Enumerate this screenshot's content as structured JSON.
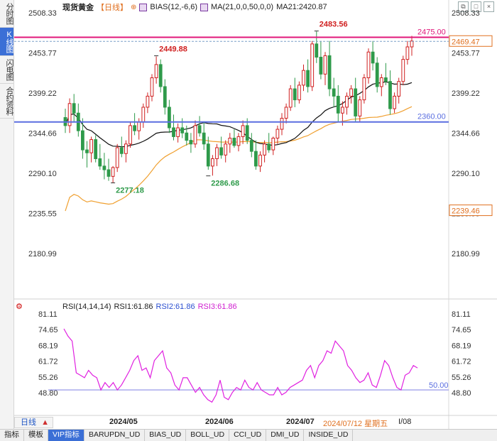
{
  "sidebar": {
    "tabs": [
      {
        "label": "分时图",
        "active": false
      },
      {
        "label": "K线图",
        "active": true
      },
      {
        "label": "闪电图",
        "active": false
      },
      {
        "label": "合约资料",
        "active": false
      }
    ]
  },
  "header": {
    "title": "现货黄金",
    "period": "【日线】",
    "bias": "BIAS(12,-6,6)",
    "ma": "MA(21,0,0,50,0,0)",
    "ma21": "MA21:2420.87"
  },
  "window_icons": [
    "restore-icon",
    "maximize-icon",
    "close-icon"
  ],
  "price_axis": {
    "ticks": [
      2508.33,
      2453.77,
      2399.22,
      2344.66,
      2290.1,
      2235.55,
      2180.99
    ],
    "ymin": 2130,
    "ymax": 2508.33,
    "right_labels": [
      {
        "value": "2469.47",
        "color": "#e07020"
      },
      {
        "value": "2239.46",
        "color": "#e07020"
      }
    ]
  },
  "price_lines": [
    {
      "value": 2475.0,
      "label": "2475.00",
      "color": "#e0177a"
    },
    {
      "value": 2360.0,
      "label": "2360.00",
      "color": "#5a6ee0"
    }
  ],
  "annotations": [
    {
      "value": "2449.88",
      "color": "#d02020"
    },
    {
      "value": "2483.56",
      "color": "#d02020"
    },
    {
      "value": "2277.18",
      "color": "#2e9a4a"
    },
    {
      "value": "2286.68",
      "color": "#2e9a4a"
    }
  ],
  "rsi": {
    "header": "RSI(14,14,14)",
    "rsi1": "RSI1:61.86",
    "rsi2": "RSI2:61.86",
    "rsi3": "RSI3:61.86",
    "ticks": [
      81.11,
      74.65,
      68.19,
      61.72,
      55.26,
      48.8
    ],
    "ymin": 44.5,
    "ymax": 81.11,
    "level": {
      "value": 50,
      "label": "50.00"
    },
    "values": [
      75,
      72,
      70,
      57,
      56,
      55,
      58,
      56,
      55,
      50,
      53,
      51,
      53,
      50,
      52,
      55,
      58,
      62,
      64,
      58,
      59,
      55,
      62,
      64,
      66,
      59,
      57,
      52,
      50,
      55,
      55,
      52,
      49,
      51,
      48,
      46,
      45,
      48,
      54,
      47,
      46,
      49,
      51,
      50,
      54,
      51,
      50,
      53,
      50,
      49,
      48,
      48,
      51,
      48,
      49,
      51,
      52,
      53,
      54,
      58,
      60,
      55,
      60,
      62,
      66,
      65,
      70,
      68,
      66,
      60,
      58,
      55,
      53,
      54,
      57,
      52,
      51,
      56,
      62,
      60,
      55,
      51,
      50,
      56,
      57,
      60,
      59
    ]
  },
  "x_axis": {
    "labels": [
      "2024/05",
      "2024/06",
      "2024/07"
    ],
    "selected": "2024/07/12 星期五",
    "suffix": "I/08"
  },
  "period_selector": {
    "label": "日线",
    "arrow": "▲"
  },
  "bottom_tabs": [
    "指标",
    "模板",
    "VIP指标",
    "BARUPDN_UD",
    "BIAS_UD",
    "BOLL_UD",
    "CCI_UD",
    "DMI_UD",
    "INSIDE_UD"
  ],
  "candles": [
    [
      2366,
      2378,
      2345,
      2355
    ],
    [
      2355,
      2392,
      2345,
      2385
    ],
    [
      2385,
      2398,
      2360,
      2372
    ],
    [
      2372,
      2385,
      2340,
      2348
    ],
    [
      2348,
      2365,
      2310,
      2322
    ],
    [
      2322,
      2334,
      2298,
      2318
    ],
    [
      2318,
      2340,
      2305,
      2336
    ],
    [
      2336,
      2342,
      2305,
      2310
    ],
    [
      2310,
      2330,
      2295,
      2300
    ],
    [
      2300,
      2318,
      2282,
      2295
    ],
    [
      2295,
      2310,
      2280,
      2286
    ],
    [
      2286,
      2300,
      2277,
      2298
    ],
    [
      2298,
      2330,
      2292,
      2325
    ],
    [
      2325,
      2340,
      2312,
      2317
    ],
    [
      2317,
      2335,
      2305,
      2330
    ],
    [
      2330,
      2360,
      2325,
      2355
    ],
    [
      2355,
      2372,
      2342,
      2348
    ],
    [
      2348,
      2365,
      2336,
      2360
    ],
    [
      2360,
      2385,
      2352,
      2380
    ],
    [
      2380,
      2400,
      2372,
      2395
    ],
    [
      2395,
      2425,
      2388,
      2420
    ],
    [
      2420,
      2449,
      2412,
      2438
    ],
    [
      2438,
      2445,
      2400,
      2408
    ],
    [
      2408,
      2418,
      2370,
      2380
    ],
    [
      2380,
      2390,
      2345,
      2352
    ],
    [
      2352,
      2370,
      2335,
      2340
    ],
    [
      2340,
      2358,
      2332,
      2352
    ],
    [
      2352,
      2365,
      2338,
      2345
    ],
    [
      2345,
      2355,
      2328,
      2335
    ],
    [
      2335,
      2345,
      2318,
      2330
    ],
    [
      2330,
      2362,
      2325,
      2355
    ],
    [
      2355,
      2368,
      2340,
      2345
    ],
    [
      2345,
      2360,
      2322,
      2330
    ],
    [
      2330,
      2340,
      2295,
      2300
    ],
    [
      2300,
      2315,
      2287,
      2310
    ],
    [
      2310,
      2330,
      2300,
      2325
    ],
    [
      2325,
      2340,
      2310,
      2315
    ],
    [
      2315,
      2335,
      2305,
      2330
    ],
    [
      2330,
      2345,
      2318,
      2338
    ],
    [
      2338,
      2350,
      2325,
      2328
    ],
    [
      2328,
      2345,
      2320,
      2340
    ],
    [
      2340,
      2362,
      2330,
      2355
    ],
    [
      2355,
      2365,
      2330,
      2335
    ],
    [
      2335,
      2345,
      2312,
      2320
    ],
    [
      2320,
      2335,
      2295,
      2300
    ],
    [
      2300,
      2320,
      2292,
      2315
    ],
    [
      2315,
      2335,
      2305,
      2330
    ],
    [
      2330,
      2345,
      2318,
      2322
    ],
    [
      2322,
      2340,
      2315,
      2338
    ],
    [
      2338,
      2355,
      2330,
      2350
    ],
    [
      2350,
      2372,
      2342,
      2365
    ],
    [
      2365,
      2385,
      2358,
      2380
    ],
    [
      2380,
      2410,
      2375,
      2405
    ],
    [
      2405,
      2420,
      2380,
      2390
    ],
    [
      2390,
      2415,
      2385,
      2410
    ],
    [
      2410,
      2438,
      2402,
      2430
    ],
    [
      2430,
      2445,
      2400,
      2408
    ],
    [
      2408,
      2470,
      2402,
      2466
    ],
    [
      2466,
      2483,
      2440,
      2448
    ],
    [
      2448,
      2470,
      2418,
      2425
    ],
    [
      2425,
      2455,
      2410,
      2450
    ],
    [
      2450,
      2470,
      2395,
      2405
    ],
    [
      2405,
      2420,
      2380,
      2395
    ],
    [
      2395,
      2410,
      2360,
      2372
    ],
    [
      2372,
      2388,
      2355,
      2380
    ],
    [
      2380,
      2400,
      2370,
      2395
    ],
    [
      2395,
      2410,
      2385,
      2405
    ],
    [
      2405,
      2420,
      2360,
      2368
    ],
    [
      2368,
      2395,
      2360,
      2390
    ],
    [
      2390,
      2425,
      2385,
      2420
    ],
    [
      2420,
      2460,
      2412,
      2455
    ],
    [
      2455,
      2470,
      2430,
      2440
    ],
    [
      2440,
      2448,
      2400,
      2408
    ],
    [
      2408,
      2425,
      2395,
      2420
    ],
    [
      2420,
      2440,
      2410,
      2415
    ],
    [
      2415,
      2430,
      2370,
      2378
    ],
    [
      2378,
      2400,
      2372,
      2395
    ],
    [
      2395,
      2420,
      2385,
      2415
    ],
    [
      2415,
      2450,
      2410,
      2445
    ],
    [
      2445,
      2470,
      2438,
      2462
    ],
    [
      2462,
      2477,
      2450,
      2470
    ]
  ]
}
